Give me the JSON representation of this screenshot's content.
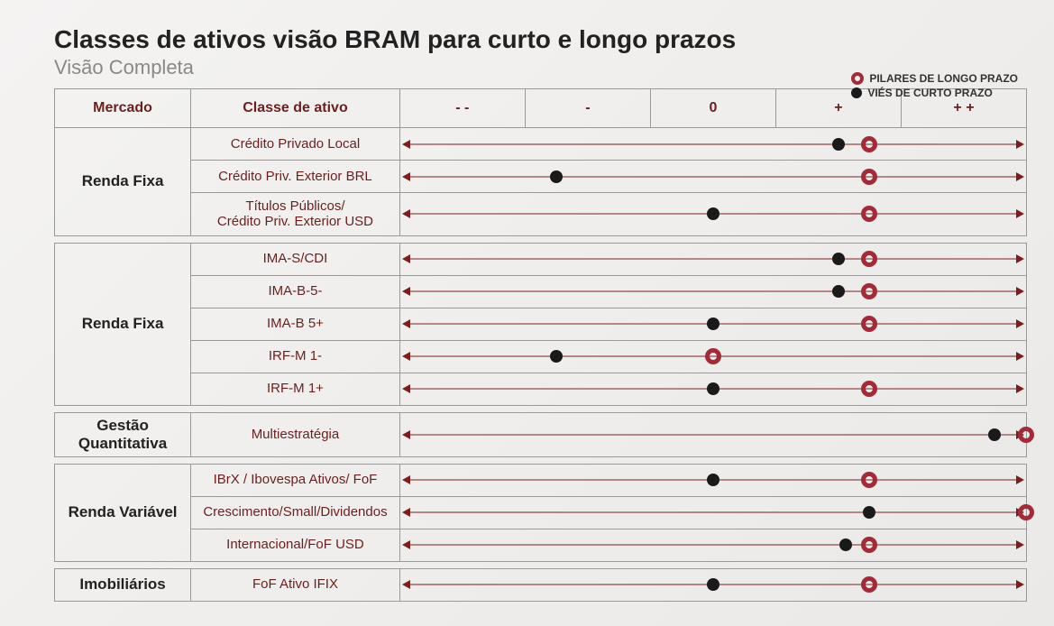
{
  "title": "Classes de ativos visão BRAM para curto e longo prazos",
  "subtitle": "Visão Completa",
  "legend": {
    "ring_label": "PILARES DE LONGO PRAZO",
    "dot_label": "VIÉS DE CURTO PRAZO"
  },
  "colors": {
    "ring": "#a02c3a",
    "dot": "#1a1a1a",
    "axis": "#7a1f1f",
    "header_text": "#6a1f1f",
    "border": "#999999"
  },
  "columns": {
    "mercado": "Mercado",
    "classe": "Classe de ativo",
    "scale": [
      "- -",
      "-",
      "0",
      "+",
      "+ +"
    ]
  },
  "scale_domain": {
    "min": -2,
    "max": 2
  },
  "groups": [
    {
      "mercado": "Renda Fixa",
      "rows": [
        {
          "classe": "Crédito Privado Local",
          "ring": 1.0,
          "dot": 0.8
        },
        {
          "classe": "Crédito Priv. Exterior BRL",
          "ring": 1.0,
          "dot": -1.0
        },
        {
          "classe": "Títulos Públicos/\nCrédito Priv. Exterior USD",
          "ring": 1.0,
          "dot": 0.0
        }
      ]
    },
    {
      "mercado": "Renda Fixa",
      "rows": [
        {
          "classe": "IMA-S/CDI",
          "ring": 1.0,
          "dot": 0.8
        },
        {
          "classe": "IMA-B-5-",
          "ring": 1.0,
          "dot": 0.8
        },
        {
          "classe": "IMA-B 5+",
          "ring": 1.0,
          "dot": 0.0
        },
        {
          "classe": "IRF-M 1-",
          "ring": 0.0,
          "dot": -1.0
        },
        {
          "classe": "IRF-M 1+",
          "ring": 1.0,
          "dot": 0.0
        }
      ]
    },
    {
      "mercado": "Gestão Quantitativa",
      "rows": [
        {
          "classe": "Multiestratégia",
          "ring": 2.0,
          "dot": 1.8
        }
      ]
    },
    {
      "mercado": "Renda Variável",
      "rows": [
        {
          "classe": "IBrX / Ibovespa Ativos/ FoF",
          "ring": 1.0,
          "dot": 0.0
        },
        {
          "classe": "Crescimento/Small/Dividendos",
          "ring": 2.0,
          "dot": 1.0
        },
        {
          "classe": "Internacional/FoF USD",
          "ring": 1.0,
          "dot": 0.85
        }
      ]
    },
    {
      "mercado": "Imobiliários",
      "rows": [
        {
          "classe": "FoF Ativo IFIX",
          "ring": 1.0,
          "dot": 0.0
        }
      ]
    }
  ]
}
